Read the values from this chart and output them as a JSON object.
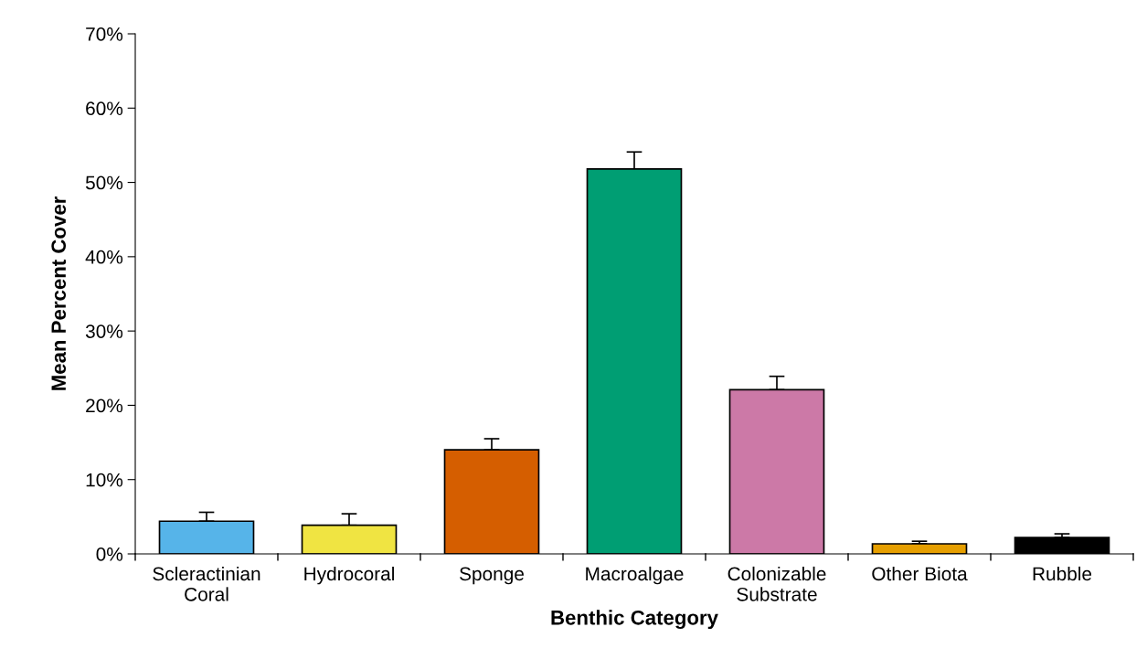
{
  "chart_data": {
    "type": "bar",
    "xlabel": "Benthic Category",
    "ylabel": "Mean Percent Cover",
    "categories": [
      "Scleractinian\nCoral",
      "Hydrocoral",
      "Sponge",
      "Macroalgae",
      "Colonizable\nSubstrate",
      "Other Biota",
      "Rubble"
    ],
    "values": [
      4.4,
      3.85,
      14.0,
      51.8,
      22.1,
      1.35,
      2.2
    ],
    "errors": [
      [
        4.4,
        5.6
      ],
      [
        3.85,
        5.4
      ],
      [
        14.0,
        15.5
      ],
      [
        51.8,
        54.1
      ],
      [
        22.1,
        23.9
      ],
      [
        1.35,
        1.7
      ],
      [
        2.2,
        2.7
      ]
    ],
    "colors": [
      "#56b4e9",
      "#f0e442",
      "#d55e00",
      "#009e73",
      "#cc79a7",
      "#e69f00",
      "#000000"
    ],
    "ylim": [
      0,
      70
    ],
    "yticks": [
      {
        "value": 0,
        "label": "0%"
      },
      {
        "value": 10,
        "label": "10%"
      },
      {
        "value": 20,
        "label": "20%"
      },
      {
        "value": 30,
        "label": "30%"
      },
      {
        "value": 40,
        "label": "40%"
      },
      {
        "value": 50,
        "label": "50%"
      },
      {
        "value": 60,
        "label": "60%"
      },
      {
        "value": 70,
        "label": "70%"
      }
    ],
    "grid": false,
    "legend": false
  }
}
